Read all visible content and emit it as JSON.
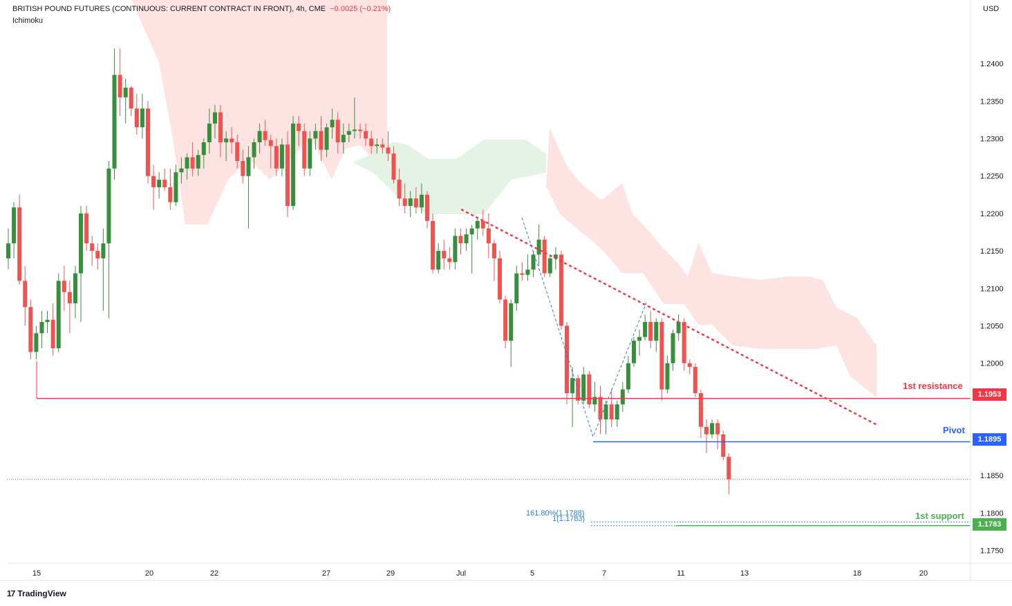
{
  "header": {
    "symbol": "BRITISH POUND FUTURES (CONTINUOUS: CURRENT CONTRACT IN FRONT)",
    "interval": "4h",
    "exchange": "CME",
    "change": "−0.0025 (−0.21%)",
    "indicator": "Ichimoku"
  },
  "currency": "USD",
  "branding": "TradingView",
  "colors": {
    "up": "#388e3c",
    "down": "#ef5350",
    "resistance": "#f23645",
    "pivot": "#2962ff",
    "support": "#4caf50",
    "cloud_bear": "#fde0de",
    "cloud_bull": "#e3f2e4",
    "fib": "#2a7fd4"
  },
  "chart_data": {
    "type": "candlestick",
    "y_ticks": [
      "1.2400",
      "1.2350",
      "1.2300",
      "1.2250",
      "1.2200",
      "1.2150",
      "1.2100",
      "1.2050",
      "1.2000",
      "1.1900",
      "1.1850",
      "1.1800",
      "1.1750"
    ],
    "x_ticks": [
      "15",
      "20",
      "22",
      "27",
      "29",
      "Jul",
      "5",
      "7",
      "11",
      "13",
      "18",
      "20"
    ],
    "ylim": [
      1.1733,
      1.2485
    ],
    "levels": [
      {
        "label": "1st resistance",
        "value": "1.1953",
        "color": "#f23645"
      },
      {
        "label": "Pivot",
        "value": "1.1895",
        "color": "#2962ff"
      },
      {
        "label": "1st support",
        "value": "1.1783",
        "color": "#4caf50"
      }
    ],
    "fib_labels": [
      "161.80%(1.1788)",
      "1(1.1783)"
    ],
    "candles": [
      [
        1.214,
        1.218,
        1.2125,
        1.216
      ],
      [
        1.216,
        1.2215,
        1.214,
        1.2208
      ],
      [
        1.2208,
        1.2225,
        1.2105,
        1.211
      ],
      [
        1.211,
        1.213,
        1.205,
        1.2075
      ],
      [
        1.2075,
        1.2085,
        1.2005,
        1.2015
      ],
      [
        1.2015,
        1.205,
        1.2005,
        1.204
      ],
      [
        1.204,
        1.207,
        1.202,
        1.2055
      ],
      [
        1.2055,
        1.207,
        1.204,
        1.2058
      ],
      [
        1.2058,
        1.208,
        1.201,
        1.202
      ],
      [
        1.202,
        1.212,
        1.2015,
        1.211
      ],
      [
        1.211,
        1.213,
        1.207,
        1.2095
      ],
      [
        1.2095,
        1.211,
        1.204,
        1.208
      ],
      [
        1.208,
        1.213,
        1.206,
        1.212
      ],
      [
        1.212,
        1.221,
        1.2055,
        1.22
      ],
      [
        1.22,
        1.221,
        1.215,
        1.216
      ],
      [
        1.216,
        1.217,
        1.213,
        1.215
      ],
      [
        1.215,
        1.216,
        1.2125,
        1.214
      ],
      [
        1.214,
        1.218,
        1.207,
        1.216
      ],
      [
        1.216,
        1.227,
        1.206,
        1.226
      ],
      [
        1.226,
        1.242,
        1.2245,
        1.2385
      ],
      [
        1.2385,
        1.242,
        1.233,
        1.2355
      ],
      [
        1.2355,
        1.238,
        1.232,
        1.2368
      ],
      [
        1.2368,
        1.237,
        1.233,
        1.234
      ],
      [
        1.234,
        1.236,
        1.2305,
        1.2315
      ],
      [
        1.2315,
        1.236,
        1.23,
        1.234
      ],
      [
        1.234,
        1.235,
        1.224,
        1.225
      ],
      [
        1.225,
        1.2265,
        1.2205,
        1.2235
      ],
      [
        1.2235,
        1.2255,
        1.222,
        1.2245
      ],
      [
        1.2245,
        1.226,
        1.223,
        1.2235
      ],
      [
        1.2235,
        1.226,
        1.2205,
        1.2215
      ],
      [
        1.2215,
        1.2265,
        1.221,
        1.2255
      ],
      [
        1.2255,
        1.2275,
        1.224,
        1.226
      ],
      [
        1.226,
        1.228,
        1.2245,
        1.2275
      ],
      [
        1.2275,
        1.2295,
        1.225,
        1.226
      ],
      [
        1.226,
        1.2285,
        1.225,
        1.2278
      ],
      [
        1.2278,
        1.23,
        1.226,
        1.2295
      ],
      [
        1.2295,
        1.234,
        1.228,
        1.232
      ],
      [
        1.232,
        1.2345,
        1.23,
        1.2335
      ],
      [
        1.2335,
        1.2345,
        1.2275,
        1.2295
      ],
      [
        1.2295,
        1.231,
        1.227,
        1.23
      ],
      [
        1.23,
        1.2315,
        1.228,
        1.2295
      ],
      [
        1.2295,
        1.2305,
        1.226,
        1.227
      ],
      [
        1.227,
        1.2285,
        1.224,
        1.225
      ],
      [
        1.225,
        1.229,
        1.218,
        1.2275
      ],
      [
        1.2275,
        1.23,
        1.226,
        1.2295
      ],
      [
        1.2295,
        1.232,
        1.228,
        1.231
      ],
      [
        1.231,
        1.2325,
        1.229,
        1.2298
      ],
      [
        1.2298,
        1.2305,
        1.226,
        1.229
      ],
      [
        1.229,
        1.23,
        1.225,
        1.226
      ],
      [
        1.226,
        1.23,
        1.225,
        1.2292
      ],
      [
        1.2292,
        1.231,
        1.2195,
        1.221
      ],
      [
        1.221,
        1.233,
        1.2205,
        1.232
      ],
      [
        1.232,
        1.233,
        1.229,
        1.231
      ],
      [
        1.231,
        1.232,
        1.225,
        1.226
      ],
      [
        1.226,
        1.231,
        1.225,
        1.23
      ],
      [
        1.23,
        1.232,
        1.2285,
        1.231
      ],
      [
        1.231,
        1.233,
        1.227,
        1.2285
      ],
      [
        1.2285,
        1.232,
        1.2275,
        1.2315
      ],
      [
        1.2315,
        1.234,
        1.23,
        1.2325
      ],
      [
        1.2325,
        1.2335,
        1.228,
        1.2295
      ],
      [
        1.2295,
        1.232,
        1.228,
        1.2305
      ],
      [
        1.2305,
        1.232,
        1.2295,
        1.231
      ],
      [
        1.231,
        1.2355,
        1.23,
        1.2312
      ],
      [
        1.2312,
        1.232,
        1.23,
        1.231
      ],
      [
        1.231,
        1.232,
        1.229,
        1.23
      ],
      [
        1.23,
        1.231,
        1.228,
        1.229
      ],
      [
        1.229,
        1.23,
        1.228,
        1.2292
      ],
      [
        1.2292,
        1.23,
        1.228,
        1.2288
      ],
      [
        1.2288,
        1.231,
        1.227,
        1.228
      ],
      [
        1.228,
        1.229,
        1.224,
        1.2245
      ],
      [
        1.2245,
        1.226,
        1.221,
        1.222
      ],
      [
        1.222,
        1.224,
        1.22,
        1.221
      ],
      [
        1.221,
        1.223,
        1.2195,
        1.222
      ],
      [
        1.222,
        1.2235,
        1.22,
        1.2208
      ],
      [
        1.2208,
        1.224,
        1.22,
        1.2225
      ],
      [
        1.2225,
        1.223,
        1.218,
        1.219
      ],
      [
        1.219,
        1.22,
        1.212,
        1.2125
      ],
      [
        1.2125,
        1.216,
        1.212,
        1.215
      ],
      [
        1.215,
        1.2165,
        1.2125,
        1.214
      ],
      [
        1.214,
        1.2155,
        1.2125,
        1.2135
      ],
      [
        1.2135,
        1.218,
        1.2125,
        1.217
      ],
      [
        1.217,
        1.218,
        1.2145,
        1.216
      ],
      [
        1.216,
        1.218,
        1.215,
        1.2172
      ],
      [
        1.2172,
        1.2185,
        1.212,
        1.218
      ],
      [
        1.218,
        1.2195,
        1.2165,
        1.219
      ],
      [
        1.219,
        1.2205,
        1.217,
        1.218
      ],
      [
        1.218,
        1.22,
        1.214,
        1.216
      ],
      [
        1.216,
        1.2165,
        1.211,
        1.214
      ],
      [
        1.214,
        1.215,
        1.208,
        1.2085
      ],
      [
        1.2085,
        1.209,
        1.202,
        1.203
      ],
      [
        1.203,
        1.2085,
        1.1995,
        1.208
      ],
      [
        1.208,
        1.213,
        1.207,
        1.212
      ],
      [
        1.212,
        1.2135,
        1.211,
        1.2118
      ],
      [
        1.2118,
        1.2145,
        1.211,
        1.2125
      ],
      [
        1.2125,
        1.215,
        1.2115,
        1.2145
      ],
      [
        1.2145,
        1.2185,
        1.213,
        1.2165
      ],
      [
        1.2165,
        1.217,
        1.2115,
        1.212
      ],
      [
        1.212,
        1.2145,
        1.2115,
        1.214
      ],
      [
        1.214,
        1.2155,
        1.2125,
        1.2145
      ],
      [
        1.2145,
        1.215,
        1.2045,
        1.205
      ],
      [
        1.205,
        1.2055,
        1.1945,
        1.196
      ],
      [
        1.196,
        1.1995,
        1.1915,
        1.198
      ],
      [
        1.198,
        1.1985,
        1.1945,
        1.195
      ],
      [
        1.195,
        1.1995,
        1.1945,
        1.1985
      ],
      [
        1.1985,
        1.199,
        1.194,
        1.1945
      ],
      [
        1.1945,
        1.1975,
        1.1935,
        1.1955
      ],
      [
        1.1955,
        1.197,
        1.1905,
        1.1925
      ],
      [
        1.1925,
        1.195,
        1.1905,
        1.1945
      ],
      [
        1.1945,
        1.1965,
        1.1915,
        1.1925
      ],
      [
        1.1925,
        1.195,
        1.1915,
        1.1945
      ],
      [
        1.1945,
        1.1975,
        1.1935,
        1.1965
      ],
      [
        1.1965,
        1.201,
        1.196,
        1.2
      ],
      [
        1.2,
        1.2035,
        1.1995,
        1.203
      ],
      [
        1.203,
        1.2045,
        1.201,
        1.2035
      ],
      [
        1.2035,
        1.2065,
        1.203,
        1.2055
      ],
      [
        1.2055,
        1.207,
        1.202,
        1.203
      ],
      [
        1.203,
        1.206,
        1.2015,
        1.2055
      ],
      [
        1.2055,
        1.206,
        1.195,
        1.1965
      ],
      [
        1.1965,
        1.201,
        1.196,
        1.2
      ],
      [
        1.2,
        1.2045,
        1.199,
        1.204
      ],
      [
        1.204,
        1.2065,
        1.203,
        1.2055
      ],
      [
        1.2055,
        1.206,
        1.199,
        1.2
      ],
      [
        1.2,
        1.2005,
        1.1985,
        1.1995
      ],
      [
        1.1995,
        1.2,
        1.1955,
        1.196
      ],
      [
        1.196,
        1.1965,
        1.19,
        1.1915
      ],
      [
        1.1915,
        1.1925,
        1.188,
        1.1905
      ],
      [
        1.1905,
        1.1925,
        1.19,
        1.192
      ],
      [
        1.192,
        1.1925,
        1.1885,
        1.1905
      ],
      [
        1.1905,
        1.191,
        1.187,
        1.1875
      ],
      [
        1.1875,
        1.188,
        1.1825,
        1.1845
      ]
    ]
  }
}
